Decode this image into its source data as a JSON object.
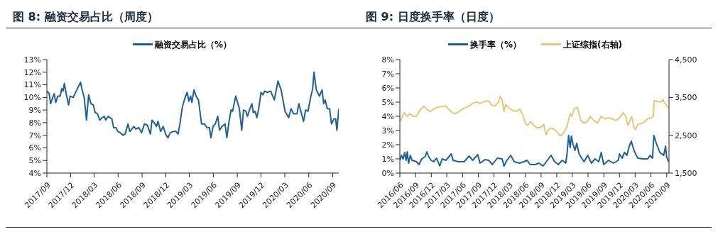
{
  "chart_data": [
    {
      "type": "line",
      "title": "图 8: 融资交易占比（周度）",
      "legend": "top",
      "marker": "none",
      "line_style": "solid",
      "xlim": [
        "2017-09-01",
        "2020-09-24"
      ],
      "xticks": [
        {
          "value": "2017-09-01",
          "label": "2017/09"
        },
        {
          "value": "2017-12-01",
          "label": "2017/12"
        },
        {
          "value": "2018-03-01",
          "label": "2018/03"
        },
        {
          "value": "2018-06-01",
          "label": "2018/06"
        },
        {
          "value": "2018-09-01",
          "label": "2018/09"
        },
        {
          "value": "2018-12-01",
          "label": "2018/12"
        },
        {
          "value": "2019-03-01",
          "label": "2019/03"
        },
        {
          "value": "2019-06-01",
          "label": "2019/06"
        },
        {
          "value": "2019-09-01",
          "label": "2019/09"
        },
        {
          "value": "2019-12-01",
          "label": "2019/12"
        },
        {
          "value": "2020-03-01",
          "label": "2020/03"
        },
        {
          "value": "2020-06-01",
          "label": "2020/06"
        },
        {
          "value": "2020-09-01",
          "label": "2020/09"
        }
      ],
      "ylim": [
        4,
        13
      ],
      "yticks": [
        {
          "value": 4,
          "label": "4%"
        },
        {
          "value": 5,
          "label": "5%"
        },
        {
          "value": 6,
          "label": "6%"
        },
        {
          "value": 7,
          "label": "7%"
        },
        {
          "value": 8,
          "label": "8%"
        },
        {
          "value": 9,
          "label": "9%"
        },
        {
          "value": 10,
          "label": "10%"
        },
        {
          "value": 11,
          "label": "11%"
        },
        {
          "value": 12,
          "label": "12%"
        },
        {
          "value": 13,
          "label": "13%"
        }
      ],
      "series": [
        {
          "name": "融资交易占比（%）",
          "color": "#1f6098",
          "x": [
            "2017-09-01",
            "2017-09-10",
            "2017-09-15",
            "2017-09-29",
            "2017-10-05",
            "2017-10-13",
            "2017-10-22",
            "2017-10-28",
            "2017-11-02",
            "2017-11-07",
            "2017-11-14",
            "2017-11-23",
            "2017-11-29",
            "2017-12-11",
            "2017-12-25",
            "2018-01-08",
            "2018-01-13",
            "2018-01-22",
            "2018-01-31",
            "2018-02-08",
            "2018-02-17",
            "2018-02-26",
            "2018-03-05",
            "2018-03-14",
            "2018-03-23",
            "2018-04-01",
            "2018-04-09",
            "2018-04-15",
            "2018-04-24",
            "2018-05-08",
            "2018-05-15",
            "2018-05-24",
            "2018-05-31",
            "2018-06-09",
            "2018-06-20",
            "2018-06-28",
            "2018-07-09",
            "2018-07-16",
            "2018-07-24",
            "2018-07-31",
            "2018-08-08",
            "2018-08-20",
            "2018-08-30",
            "2018-09-10",
            "2018-09-21",
            "2018-10-03",
            "2018-10-09",
            "2018-10-17",
            "2018-10-26",
            "2018-11-01",
            "2018-11-11",
            "2018-11-21",
            "2018-11-30",
            "2018-12-09",
            "2018-12-18",
            "2018-12-29",
            "2019-01-09",
            "2019-01-17",
            "2019-01-24",
            "2019-02-02",
            "2019-02-13",
            "2019-02-21",
            "2019-02-27",
            "2019-03-06",
            "2019-03-11",
            "2019-03-19",
            "2019-03-27",
            "2019-04-05",
            "2019-04-17",
            "2019-04-28",
            "2019-05-08",
            "2019-05-17",
            "2019-05-23",
            "2019-05-31",
            "2019-06-09",
            "2019-06-18",
            "2019-06-25",
            "2019-07-04",
            "2019-07-16",
            "2019-07-23",
            "2019-07-30",
            "2019-08-08",
            "2019-08-14",
            "2019-08-26",
            "2019-09-09",
            "2019-09-18",
            "2019-09-25",
            "2019-10-04",
            "2019-10-10",
            "2019-10-21",
            "2019-10-27",
            "2019-11-01",
            "2019-11-08",
            "2019-11-15",
            "2019-11-22",
            "2019-12-01",
            "2019-12-08",
            "2019-12-15",
            "2019-12-26",
            "2020-01-07",
            "2020-01-21",
            "2020-02-04",
            "2020-02-16",
            "2020-02-25",
            "2020-03-02",
            "2020-03-16",
            "2020-03-25",
            "2020-04-04",
            "2020-04-17",
            "2020-04-24",
            "2020-05-03",
            "2020-05-12",
            "2020-05-20",
            "2020-05-29",
            "2020-06-07",
            "2020-06-16",
            "2020-06-21",
            "2020-06-30",
            "2020-07-12",
            "2020-07-22",
            "2020-07-28",
            "2020-08-03",
            "2020-08-11",
            "2020-08-20",
            "2020-08-27",
            "2020-09-06",
            "2020-09-12",
            "2020-09-17",
            "2020-09-24"
          ],
          "values": [
            10.5,
            10.3,
            9.5,
            10.3,
            9.6,
            10.1,
            10.1,
            10.7,
            10.5,
            11.1,
            10.3,
            9.4,
            10.1,
            10.0,
            10.6,
            11.2,
            10.7,
            10.0,
            8.2,
            10.2,
            9.5,
            9.4,
            8.8,
            8.7,
            8.2,
            8.4,
            8.5,
            8.2,
            8.5,
            8.3,
            7.6,
            7.6,
            7.3,
            7.2,
            7.0,
            7.1,
            7.9,
            7.3,
            7.5,
            7.7,
            7.5,
            7.6,
            7.2,
            7.9,
            7.8,
            7.1,
            8.2,
            8.0,
            7.7,
            8.1,
            7.3,
            7.7,
            7.1,
            6.8,
            7.2,
            7.3,
            7.3,
            7.1,
            7.9,
            9.2,
            10.0,
            10.4,
            9.7,
            10.1,
            9.6,
            10.6,
            10.1,
            9.8,
            7.9,
            7.9,
            7.6,
            7.6,
            6.8,
            7.7,
            7.9,
            8.5,
            7.4,
            7.7,
            7.9,
            6.8,
            7.9,
            9.0,
            8.9,
            10.1,
            9.1,
            7.4,
            9.0,
            8.9,
            8.5,
            9.2,
            9.5,
            8.8,
            8.9,
            8.4,
            9.1,
            10.4,
            10.2,
            10.5,
            10.4,
            10.5,
            9.8,
            11.3,
            10.6,
            9.6,
            8.9,
            8.4,
            9.1,
            8.7,
            8.7,
            9.5,
            8.8,
            8.1,
            9.0,
            8.9,
            9.9,
            10.7,
            12.0,
            10.6,
            10.1,
            10.6,
            9.5,
            9.8,
            9.1,
            9.1,
            7.9,
            8.3,
            8.3,
            7.4,
            9.1
          ]
        }
      ]
    },
    {
      "type": "line",
      "title": "图 9: 日度换手率（日度）",
      "legend": "top",
      "marker": "none",
      "line_style": "solid",
      "xlim": [
        "2016-06-01",
        "2020-09-14"
      ],
      "xticks": [
        {
          "value": "2016-06-01",
          "label": "2016/06"
        },
        {
          "value": "2016-09-01",
          "label": "2016/09"
        },
        {
          "value": "2016-12-01",
          "label": "2016/12"
        },
        {
          "value": "2017-03-01",
          "label": "2017/03"
        },
        {
          "value": "2017-06-01",
          "label": "2017/06"
        },
        {
          "value": "2017-09-01",
          "label": "2017/09"
        },
        {
          "value": "2017-12-01",
          "label": "2017/12"
        },
        {
          "value": "2018-03-01",
          "label": "2018/03"
        },
        {
          "value": "2018-06-01",
          "label": "2018/06"
        },
        {
          "value": "2018-09-01",
          "label": "2018/09"
        },
        {
          "value": "2018-12-01",
          "label": "2018/12"
        },
        {
          "value": "2019-03-01",
          "label": "2019/03"
        },
        {
          "value": "2019-06-01",
          "label": "2019/06"
        },
        {
          "value": "2019-09-01",
          "label": "2019/09"
        },
        {
          "value": "2019-12-01",
          "label": "2019/12"
        },
        {
          "value": "2020-03-01",
          "label": "2020/03"
        },
        {
          "value": "2020-06-01",
          "label": "2020/06"
        },
        {
          "value": "2020-09-01",
          "label": "2020/09"
        }
      ],
      "ylim": [
        0,
        8
      ],
      "yticks": [
        {
          "value": 0,
          "label": "0%"
        },
        {
          "value": 1,
          "label": "1%"
        },
        {
          "value": 2,
          "label": "2%"
        },
        {
          "value": 3,
          "label": "3%"
        },
        {
          "value": 4,
          "label": "4%"
        },
        {
          "value": 5,
          "label": "5%"
        },
        {
          "value": 6,
          "label": "6%"
        },
        {
          "value": 7,
          "label": "7%"
        },
        {
          "value": 8,
          "label": "8%"
        }
      ],
      "y2lim": [
        1500,
        4500
      ],
      "y2ticks": [
        {
          "value": 1500,
          "label": "1,500"
        },
        {
          "value": 2500,
          "label": "2,500"
        },
        {
          "value": 3500,
          "label": "3,500"
        },
        {
          "value": 4500,
          "label": "4,500"
        }
      ],
      "series": [
        {
          "name": "换手率（%）",
          "color": "#1f6098",
          "x": [
            "2016-06-01",
            "2016-06-10",
            "2016-06-20",
            "2016-06-29",
            "2016-07-08",
            "2016-07-14",
            "2016-07-22",
            "2016-08-01",
            "2016-08-11",
            "2016-09-06",
            "2016-09-20",
            "2016-10-07",
            "2016-10-26",
            "2016-11-05",
            "2016-11-16",
            "2016-11-30",
            "2016-12-14",
            "2017-01-01",
            "2017-01-19",
            "2017-02-02",
            "2017-02-24",
            "2017-03-27",
            "2017-04-07",
            "2017-05-06",
            "2017-06-10",
            "2017-07-09",
            "2017-07-30",
            "2017-08-28",
            "2017-09-11",
            "2017-10-09",
            "2017-10-31",
            "2017-11-21",
            "2017-12-20",
            "2018-01-17",
            "2018-01-28",
            "2018-02-14",
            "2018-03-08",
            "2018-03-29",
            "2018-04-27",
            "2018-05-25",
            "2018-06-11",
            "2018-06-30",
            "2018-07-28",
            "2018-08-19",
            "2018-09-13",
            "2018-10-07",
            "2018-10-29",
            "2018-11-19",
            "2018-12-10",
            "2019-01-01",
            "2019-01-22",
            "2019-01-29",
            "2019-02-08",
            "2019-02-17",
            "2019-02-24",
            "2019-03-06",
            "2019-03-17",
            "2019-03-27",
            "2019-04-10",
            "2019-04-25",
            "2019-05-09",
            "2019-05-30",
            "2019-06-21",
            "2019-07-12",
            "2019-08-02",
            "2019-08-17",
            "2019-08-31",
            "2019-09-28",
            "2019-10-27",
            "2019-11-24",
            "2019-12-01",
            "2019-12-16",
            "2019-12-30",
            "2020-01-13",
            "2020-01-27",
            "2020-02-08",
            "2020-02-18",
            "2020-03-03",
            "2020-03-17",
            "2020-04-15",
            "2020-05-13",
            "2020-05-27",
            "2020-06-10",
            "2020-06-18",
            "2020-07-02",
            "2020-07-23",
            "2020-08-14",
            "2020-08-25",
            "2020-08-31",
            "2020-09-11"
          ],
          "values": [
            0.9,
            1.25,
            1.0,
            1.45,
            0.9,
            1.5,
            0.7,
            1.25,
            0.9,
            0.8,
            0.6,
            1.0,
            1.15,
            1.5,
            1.15,
            0.9,
            0.8,
            1.05,
            0.5,
            1.0,
            0.9,
            1.35,
            0.9,
            0.8,
            0.8,
            1.2,
            0.9,
            1.3,
            0.7,
            0.95,
            0.9,
            0.6,
            1.05,
            1.0,
            0.5,
            0.9,
            1.25,
            0.8,
            0.7,
            0.8,
            0.9,
            0.6,
            0.6,
            0.7,
            0.5,
            0.9,
            1.25,
            0.8,
            0.6,
            0.9,
            0.7,
            1.25,
            2.65,
            1.8,
            2.6,
            2.0,
            1.6,
            2.1,
            1.35,
            1.05,
            0.8,
            1.25,
            0.7,
            1.0,
            0.8,
            1.45,
            0.6,
            0.9,
            0.7,
            0.9,
            1.35,
            1.05,
            1.45,
            1.25,
            1.9,
            2.25,
            1.8,
            1.35,
            1.05,
            1.0,
            1.0,
            1.25,
            1.05,
            2.65,
            2.1,
            1.45,
            1.25,
            1.9,
            1.15,
            0.8
          ]
        },
        {
          "name": "上证综指(右轴)",
          "color": "#e6c77a",
          "axis": "y2",
          "x": [
            "2016-06-01",
            "2016-06-12",
            "2016-06-27",
            "2016-07-14",
            "2016-07-28",
            "2016-08-15",
            "2016-09-06",
            "2016-09-27",
            "2016-10-19",
            "2016-11-09",
            "2016-11-27",
            "2016-12-17",
            "2017-01-05",
            "2017-02-02",
            "2017-02-24",
            "2017-03-10",
            "2017-03-31",
            "2017-04-22",
            "2017-05-13",
            "2017-06-03",
            "2017-07-09",
            "2017-07-30",
            "2017-08-21",
            "2017-09-11",
            "2017-10-09",
            "2017-10-31",
            "2017-11-14",
            "2017-12-05",
            "2017-12-27",
            "2018-01-06",
            "2018-01-17",
            "2018-01-28",
            "2018-02-07",
            "2018-02-26",
            "2018-03-22",
            "2018-04-12",
            "2018-04-30",
            "2018-05-18",
            "2018-06-01",
            "2018-06-15",
            "2018-06-30",
            "2018-07-21",
            "2018-08-11",
            "2018-09-02",
            "2018-09-16",
            "2018-09-30",
            "2018-10-14",
            "2018-11-01",
            "2018-11-19",
            "2018-12-03",
            "2018-12-22",
            "2019-01-08",
            "2019-01-29",
            "2019-02-17",
            "2019-02-27",
            "2019-03-13",
            "2019-03-31",
            "2019-04-10",
            "2019-04-20",
            "2019-05-09",
            "2019-05-30",
            "2019-06-13",
            "2019-07-05",
            "2019-07-26",
            "2019-08-17",
            "2019-09-07",
            "2019-09-28",
            "2019-10-20",
            "2019-11-10",
            "2019-12-01",
            "2019-12-23",
            "2020-01-06",
            "2020-01-20",
            "2020-02-10",
            "2020-02-22",
            "2020-03-03",
            "2020-03-17",
            "2020-04-15",
            "2020-05-13",
            "2020-06-03",
            "2020-06-15",
            "2020-06-20",
            "2020-07-09",
            "2020-07-30",
            "2020-08-11",
            "2020-08-21",
            "2020-09-04",
            "2020-09-14"
          ],
          "values": [
            2860,
            2960,
            3100,
            3000,
            3070,
            3000,
            3000,
            3170,
            3270,
            3170,
            3130,
            3200,
            3240,
            3260,
            3270,
            3200,
            3100,
            3070,
            3130,
            3200,
            3270,
            3340,
            3380,
            3340,
            3400,
            3410,
            3310,
            3270,
            3380,
            3530,
            3440,
            3130,
            3310,
            3220,
            3150,
            3130,
            3190,
            3030,
            2820,
            2760,
            2860,
            2760,
            2690,
            2720,
            2790,
            2510,
            2650,
            2690,
            2650,
            2580,
            2480,
            2550,
            2720,
            3070,
            3000,
            3200,
            3240,
            3070,
            2890,
            2820,
            2870,
            3000,
            2890,
            2820,
            3000,
            2930,
            2960,
            2930,
            2890,
            2960,
            3100,
            3000,
            2760,
            3000,
            2720,
            2650,
            2790,
            2820,
            2930,
            2960,
            3000,
            3420,
            3390,
            3380,
            3440,
            3340,
            3270,
            3220
          ]
        }
      ]
    }
  ]
}
